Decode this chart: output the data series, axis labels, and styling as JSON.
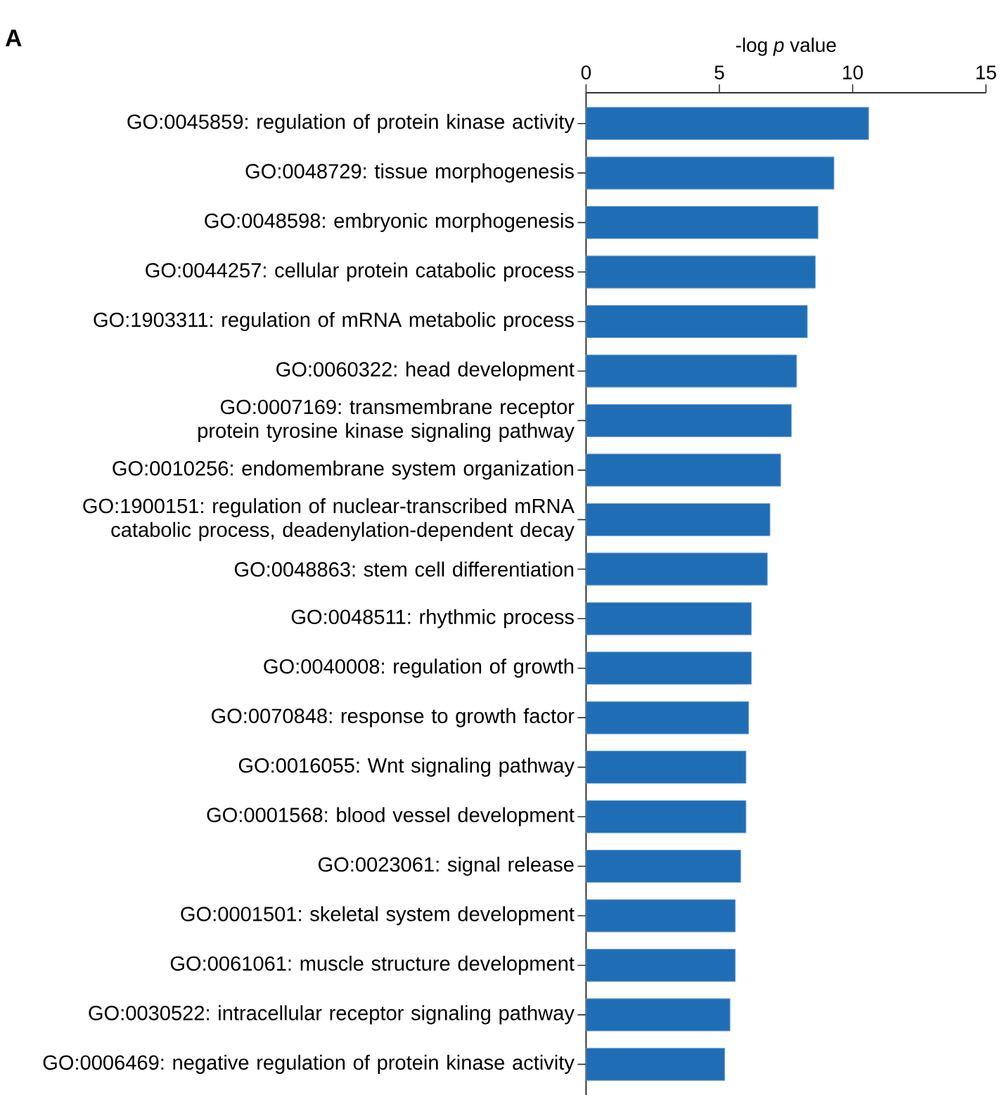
{
  "chart_data": {
    "type": "bar",
    "orientation": "horizontal",
    "xlabel": "-log *p* value",
    "categories": [
      "GO:0045859: regulation of protein kinase activity",
      "GO:0048729: tissue morphogenesis",
      "GO:0048598: embryonic morphogenesis",
      "GO:0044257: cellular protein catabolic process",
      "GO:1903311: regulation of mRNA metabolic process",
      "GO:0060322: head development",
      "GO:0007169: transmembrane receptor protein tyrosine kinase signaling pathway",
      "GO:0010256: endomembrane system organization",
      "GO:1900151: regulation of nuclear-transcribed mRNA catabolic process, deadenylation-dependent decay",
      "GO:0048863: stem cell differentiation",
      "GO:0048511: rhythmic process",
      "GO:0040008: regulation of growth",
      "GO:0070848: response to growth factor",
      "GO:0016055: Wnt signaling pathway",
      "GO:0001568: blood vessel development",
      "GO:0023061: signal release",
      "GO:0001501: skeletal system development",
      "GO:0061061: muscle structure development",
      "GO:0030522: intracellular receptor signaling pathway",
      "GO:0006469: negative regulation of protein kinase activity"
    ],
    "values": [
      10.6,
      9.3,
      8.7,
      8.6,
      8.3,
      7.9,
      7.7,
      7.3,
      6.9,
      6.8,
      6.2,
      6.2,
      6.1,
      6.0,
      6.0,
      5.8,
      5.6,
      5.6,
      5.4,
      5.2
    ],
    "color": "#1f6eb5",
    "xlim": [
      0,
      15
    ],
    "xticks": [
      0,
      5,
      10,
      15
    ],
    "annotations": [
      "A"
    ]
  }
}
